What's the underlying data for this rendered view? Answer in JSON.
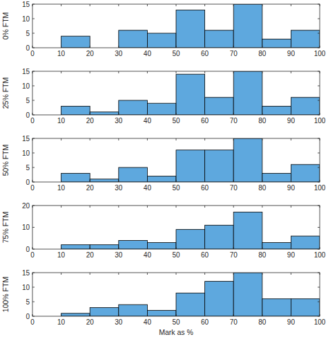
{
  "chart_data": [
    {
      "type": "histogram",
      "y_label": "0% FTM",
      "bins": [
        0,
        10,
        20,
        30,
        40,
        50,
        60,
        70,
        80,
        90,
        100
      ],
      "values": [
        0,
        4,
        0,
        6,
        5,
        13,
        6,
        15,
        3,
        6
      ],
      "xlim": [
        0,
        100
      ],
      "ylim": [
        0,
        15
      ],
      "xticks": [
        0,
        10,
        20,
        30,
        40,
        50,
        60,
        70,
        80,
        90,
        100
      ],
      "yticks": [
        0,
        5,
        10,
        15
      ],
      "color": "#5ea8de"
    },
    {
      "type": "histogram",
      "y_label": "25% FTM",
      "bins": [
        0,
        10,
        20,
        30,
        40,
        50,
        60,
        70,
        80,
        90,
        100
      ],
      "values": [
        0,
        3,
        1,
        5,
        4,
        14,
        6,
        15,
        3,
        6
      ],
      "xlim": [
        0,
        100
      ],
      "ylim": [
        0,
        15
      ],
      "xticks": [
        0,
        10,
        20,
        30,
        40,
        50,
        60,
        70,
        80,
        90,
        100
      ],
      "yticks": [
        0,
        5,
        10,
        15
      ],
      "color": "#5ea8de"
    },
    {
      "type": "histogram",
      "y_label": "50% FTM",
      "bins": [
        0,
        10,
        20,
        30,
        40,
        50,
        60,
        70,
        80,
        90,
        100
      ],
      "values": [
        0,
        3,
        1,
        5,
        2,
        11,
        11,
        15,
        3,
        6
      ],
      "xlim": [
        0,
        100
      ],
      "ylim": [
        0,
        15
      ],
      "xticks": [
        0,
        10,
        20,
        30,
        40,
        50,
        60,
        70,
        80,
        90,
        100
      ],
      "yticks": [
        0,
        5,
        10,
        15
      ],
      "color": "#5ea8de"
    },
    {
      "type": "histogram",
      "y_label": "75% FTM",
      "bins": [
        0,
        10,
        20,
        30,
        40,
        50,
        60,
        70,
        80,
        90,
        100
      ],
      "values": [
        0,
        2,
        2,
        4,
        3,
        9,
        11,
        17,
        3,
        6
      ],
      "xlim": [
        0,
        100
      ],
      "ylim": [
        0,
        20
      ],
      "xticks": [
        0,
        10,
        20,
        30,
        40,
        50,
        60,
        70,
        80,
        90,
        100
      ],
      "yticks": [
        0,
        10,
        20
      ],
      "color": "#5ea8de"
    },
    {
      "type": "histogram",
      "y_label": "100% FTM",
      "x_label": "Mark as %",
      "bins": [
        0,
        10,
        20,
        30,
        40,
        50,
        60,
        70,
        80,
        90,
        100
      ],
      "values": [
        0,
        1,
        3,
        4,
        2,
        8,
        12,
        15,
        6,
        6
      ],
      "xlim": [
        0,
        100
      ],
      "ylim": [
        0,
        15
      ],
      "xticks": [
        0,
        10,
        20,
        30,
        40,
        50,
        60,
        70,
        80,
        90,
        100
      ],
      "yticks": [
        0,
        5,
        10,
        15
      ],
      "color": "#5ea8de"
    }
  ]
}
